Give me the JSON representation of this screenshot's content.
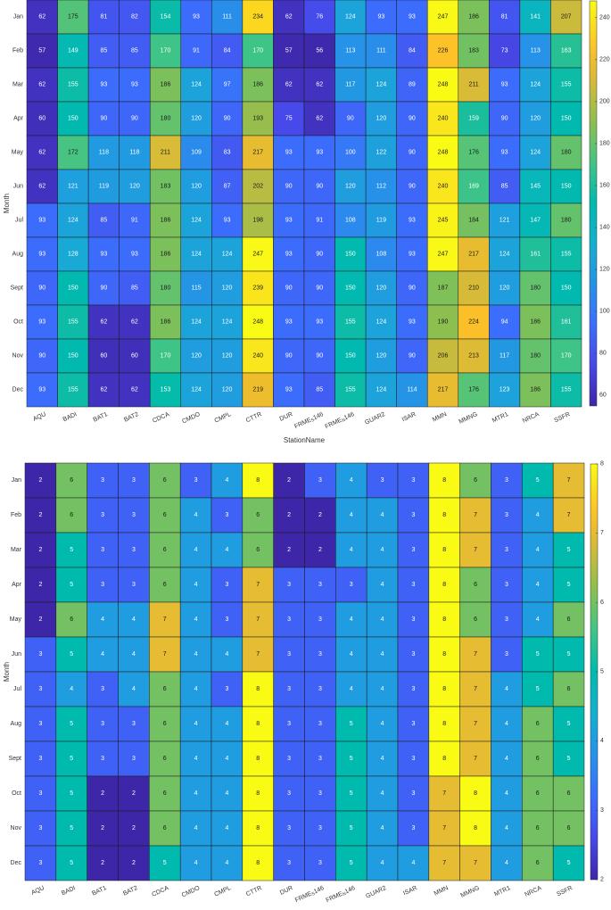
{
  "chart_data": [
    {
      "type": "heatmap",
      "xlabel": "StationName",
      "ylabel": "Month",
      "stations": [
        {
          "name": "AQU"
        },
        {
          "name": "BADI"
        },
        {
          "name": "BAT1"
        },
        {
          "name": "BAT2"
        },
        {
          "name": "CDCA"
        },
        {
          "name": "CMDO"
        },
        {
          "name": "CMPL"
        },
        {
          "name": "CTTR"
        },
        {
          "name": "DUR"
        },
        {
          "name": "FRME",
          "sub": "S",
          "suffix": "146"
        },
        {
          "name": "FRME",
          "sub": "N",
          "suffix": "146"
        },
        {
          "name": "GUAR2"
        },
        {
          "name": "ISAR"
        },
        {
          "name": "MMN"
        },
        {
          "name": "MMNG"
        },
        {
          "name": "MTR1"
        },
        {
          "name": "NRCA"
        },
        {
          "name": "SSFR"
        }
      ],
      "months": [
        "Jan",
        "Feb",
        "Mar",
        "Apr",
        "May",
        "Jun",
        "Jul",
        "Aug",
        "Sept",
        "Oct",
        "Nov",
        "Dec"
      ],
      "values": [
        [
          62,
          175,
          81,
          82,
          154,
          93,
          111,
          234,
          62,
          76,
          124,
          93,
          93,
          247,
          186,
          81,
          141,
          207
        ],
        [
          57,
          149,
          85,
          85,
          170,
          91,
          84,
          170,
          57,
          56,
          113,
          111,
          84,
          226,
          183,
          73,
          113,
          163
        ],
        [
          62,
          155,
          93,
          93,
          186,
          124,
          97,
          186,
          62,
          62,
          117,
          124,
          89,
          248,
          211,
          93,
          124,
          155
        ],
        [
          60,
          150,
          90,
          90,
          180,
          120,
          90,
          193,
          75,
          62,
          90,
          120,
          90,
          240,
          159,
          90,
          120,
          150
        ],
        [
          62,
          172,
          118,
          118,
          211,
          109,
          83,
          217,
          93,
          93,
          100,
          122,
          90,
          248,
          176,
          93,
          124,
          180
        ],
        [
          62,
          121,
          119,
          120,
          183,
          120,
          87,
          202,
          90,
          90,
          120,
          112,
          90,
          240,
          169,
          85,
          145,
          150
        ],
        [
          93,
          124,
          85,
          91,
          186,
          124,
          93,
          198,
          93,
          91,
          108,
          119,
          93,
          245,
          184,
          121,
          147,
          180
        ],
        [
          93,
          128,
          93,
          93,
          186,
          124,
          124,
          247,
          93,
          90,
          150,
          108,
          93,
          247,
          217,
          124,
          161,
          155
        ],
        [
          90,
          150,
          90,
          85,
          180,
          115,
          120,
          239,
          90,
          90,
          150,
          120,
          90,
          187,
          210,
          120,
          180,
          150
        ],
        [
          93,
          155,
          62,
          62,
          186,
          124,
          124,
          248,
          93,
          93,
          155,
          124,
          93,
          190,
          224,
          94,
          186,
          161
        ],
        [
          90,
          150,
          60,
          60,
          170,
          120,
          120,
          240,
          90,
          90,
          150,
          120,
          90,
          206,
          213,
          117,
          180,
          170
        ],
        [
          93,
          155,
          62,
          62,
          153,
          124,
          120,
          219,
          93,
          85,
          155,
          124,
          114,
          217,
          176,
          123,
          186,
          155
        ]
      ],
      "colorbar": {
        "min": 55,
        "max": 248,
        "ticks": [
          60,
          80,
          100,
          120,
          140,
          160,
          180,
          200,
          220,
          240
        ]
      }
    },
    {
      "type": "heatmap",
      "xlabel": "StationName",
      "ylabel": "Month",
      "stations": [
        {
          "name": "AQU"
        },
        {
          "name": "BADI"
        },
        {
          "name": "BAT1"
        },
        {
          "name": "BAT2"
        },
        {
          "name": "CDCA"
        },
        {
          "name": "CMDO"
        },
        {
          "name": "CMPL"
        },
        {
          "name": "CTTR"
        },
        {
          "name": "DUR"
        },
        {
          "name": "FRME",
          "sub": "S",
          "suffix": "146"
        },
        {
          "name": "FRME",
          "sub": "N",
          "suffix": "146"
        },
        {
          "name": "GUAR2"
        },
        {
          "name": "ISAR"
        },
        {
          "name": "MMN"
        },
        {
          "name": "MMNG"
        },
        {
          "name": "MTR1"
        },
        {
          "name": "NRCA"
        },
        {
          "name": "SSFR"
        }
      ],
      "months": [
        "Jan",
        "Feb",
        "Mar",
        "Apr",
        "May",
        "Jun",
        "Jul",
        "Aug",
        "Sept",
        "Oct",
        "Nov",
        "Dec"
      ],
      "values": [
        [
          2,
          6,
          3,
          3,
          6,
          3,
          4,
          8,
          2,
          3,
          4,
          3,
          3,
          8,
          6,
          3,
          5,
          7
        ],
        [
          2,
          6,
          3,
          3,
          6,
          4,
          3,
          6,
          2,
          2,
          4,
          4,
          3,
          8,
          7,
          3,
          4,
          7
        ],
        [
          2,
          5,
          3,
          3,
          6,
          4,
          4,
          6,
          2,
          2,
          4,
          4,
          3,
          8,
          7,
          3,
          4,
          5
        ],
        [
          2,
          5,
          3,
          3,
          6,
          4,
          3,
          7,
          3,
          3,
          3,
          4,
          3,
          8,
          6,
          3,
          4,
          5
        ],
        [
          2,
          6,
          4,
          4,
          7,
          4,
          3,
          7,
          3,
          3,
          4,
          4,
          3,
          8,
          6,
          3,
          4,
          6
        ],
        [
          3,
          5,
          4,
          4,
          7,
          4,
          4,
          7,
          3,
          3,
          4,
          4,
          3,
          8,
          7,
          3,
          5,
          5
        ],
        [
          3,
          4,
          3,
          4,
          6,
          4,
          3,
          8,
          3,
          3,
          4,
          4,
          3,
          8,
          7,
          4,
          5,
          6
        ],
        [
          3,
          5,
          3,
          3,
          6,
          4,
          4,
          8,
          3,
          3,
          5,
          4,
          3,
          8,
          7,
          4,
          6,
          5
        ],
        [
          3,
          5,
          3,
          3,
          6,
          4,
          4,
          8,
          3,
          3,
          5,
          4,
          3,
          8,
          7,
          4,
          6,
          5
        ],
        [
          3,
          5,
          2,
          2,
          6,
          4,
          4,
          8,
          3,
          3,
          5,
          4,
          3,
          7,
          8,
          4,
          6,
          6
        ],
        [
          3,
          5,
          2,
          2,
          6,
          4,
          4,
          8,
          3,
          3,
          5,
          4,
          3,
          7,
          8,
          4,
          6,
          6
        ],
        [
          3,
          5,
          2,
          2,
          5,
          4,
          4,
          8,
          3,
          3,
          5,
          4,
          4,
          7,
          7,
          4,
          6,
          5
        ]
      ],
      "colorbar": {
        "min": 2,
        "max": 8,
        "ticks": [
          2,
          3,
          4,
          5,
          6,
          7,
          8
        ]
      }
    }
  ]
}
